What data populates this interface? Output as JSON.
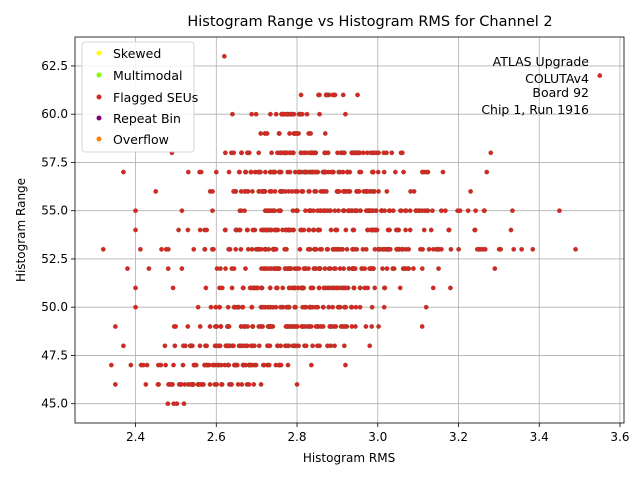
{
  "chart_data": {
    "type": "scatter",
    "title": "Histogram Range vs Histogram RMS for Channel 2",
    "xlabel": "Histogram RMS",
    "ylabel": "Histogram Range",
    "xlim": [
      2.25,
      3.61
    ],
    "ylim": [
      44.0,
      64.0
    ],
    "xticks": [
      2.4,
      2.6,
      2.8,
      3.0,
      3.2,
      3.4,
      3.6
    ],
    "xtick_labels": [
      "2.4",
      "2.6",
      "2.8",
      "3.0",
      "3.2",
      "3.4",
      "3.6"
    ],
    "yticks": [
      45.0,
      47.5,
      50.0,
      52.5,
      55.0,
      57.5,
      60.0,
      62.5
    ],
    "ytick_labels": [
      "45.0",
      "47.5",
      "50.0",
      "52.5",
      "55.0",
      "57.5",
      "60.0",
      "62.5"
    ],
    "grid": true,
    "legend_position": "top-left",
    "annotation_lines": [
      "ATLAS Upgrade",
      "COLUTAv4",
      "Board 92",
      "Chip 1, Run 1916"
    ],
    "series": [
      {
        "name": "Skewed",
        "color": "#ffff00",
        "marker": "circle",
        "x": [],
        "y": []
      },
      {
        "name": "Multimodal",
        "color": "#7fff00",
        "marker": "circle",
        "x": [],
        "y": []
      },
      {
        "name": "Flagged SEUs",
        "color": "#d62728",
        "marker": "circle",
        "ranges": [
          {
            "y": 45,
            "x_min": 2.48,
            "x_max": 2.52
          },
          {
            "y": 46,
            "x_min": 2.35,
            "x_max": 2.8
          },
          {
            "y": 47,
            "x_min": 2.34,
            "x_max": 2.92
          },
          {
            "y": 48,
            "x_min": 2.37,
            "x_max": 2.98
          },
          {
            "y": 49,
            "x_min": 2.35,
            "x_max": 3.11
          },
          {
            "y": 50,
            "x_min": 2.4,
            "x_max": 3.12
          },
          {
            "y": 51,
            "x_min": 2.4,
            "x_max": 3.18
          },
          {
            "y": 52,
            "x_min": 2.38,
            "x_max": 3.29
          },
          {
            "y": 53,
            "x_min": 2.32,
            "x_max": 3.49
          },
          {
            "y": 54,
            "x_min": 2.4,
            "x_max": 3.33
          },
          {
            "y": 55,
            "x_min": 2.4,
            "x_max": 3.45
          },
          {
            "y": 56,
            "x_min": 2.45,
            "x_max": 3.23
          },
          {
            "y": 57,
            "x_min": 2.37,
            "x_max": 3.27
          },
          {
            "y": 58,
            "x_min": 2.49,
            "x_max": 3.28
          },
          {
            "y": 59,
            "x_min": 2.71,
            "x_max": 2.87
          },
          {
            "y": 60,
            "x_min": 2.64,
            "x_max": 2.92
          },
          {
            "y": 61,
            "x_min": 2.81,
            "x_max": 2.95
          },
          {
            "y": 62,
            "x_min": 3.55,
            "x_max": 3.55
          },
          {
            "y": 63,
            "x_min": 2.62,
            "x_max": 2.62
          }
        ]
      },
      {
        "name": "Repeat Bin",
        "color": "#800080",
        "marker": "circle",
        "x": [],
        "y": []
      },
      {
        "name": "Overflow",
        "color": "#ff7f0e",
        "marker": "circle",
        "x": [],
        "y": []
      }
    ]
  }
}
